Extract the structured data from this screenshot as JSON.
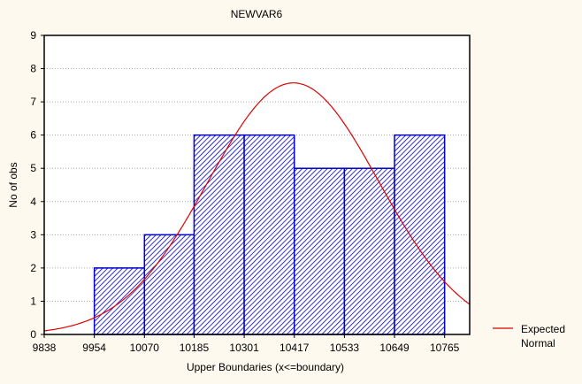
{
  "chart_data": {
    "type": "bar",
    "title": "NEWVAR6",
    "xlabel": "Upper Boundaries (x<=boundary)",
    "ylabel": "No of obs",
    "x_ticks": [
      9838,
      9954,
      10070,
      10185,
      10301,
      10417,
      10533,
      10649,
      10765
    ],
    "xlim": [
      9838,
      10823
    ],
    "ylim": [
      0,
      9
    ],
    "y_ticks": [
      0,
      1,
      2,
      3,
      4,
      5,
      6,
      7,
      8,
      9
    ],
    "grid": "horizontal dotted",
    "bins": [
      {
        "from": 9954,
        "to": 10070,
        "value": 2
      },
      {
        "from": 10070,
        "to": 10185,
        "value": 3
      },
      {
        "from": 10185,
        "to": 10301,
        "value": 6
      },
      {
        "from": 10301,
        "to": 10417,
        "value": 6
      },
      {
        "from": 10417,
        "to": 10533,
        "value": 5
      },
      {
        "from": 10533,
        "to": 10649,
        "value": 5
      },
      {
        "from": 10649,
        "to": 10765,
        "value": 6
      }
    ],
    "expected_normal": {
      "mean": 10415,
      "sd": 198,
      "peak": 7.57
    },
    "legend": {
      "label_line1": "Expected",
      "label_line2": "Normal",
      "position": "right"
    },
    "colors": {
      "bar": "#0000cc",
      "curve": "#dd0000",
      "background": "#fdf9ee",
      "plot": "#ffffff"
    }
  }
}
